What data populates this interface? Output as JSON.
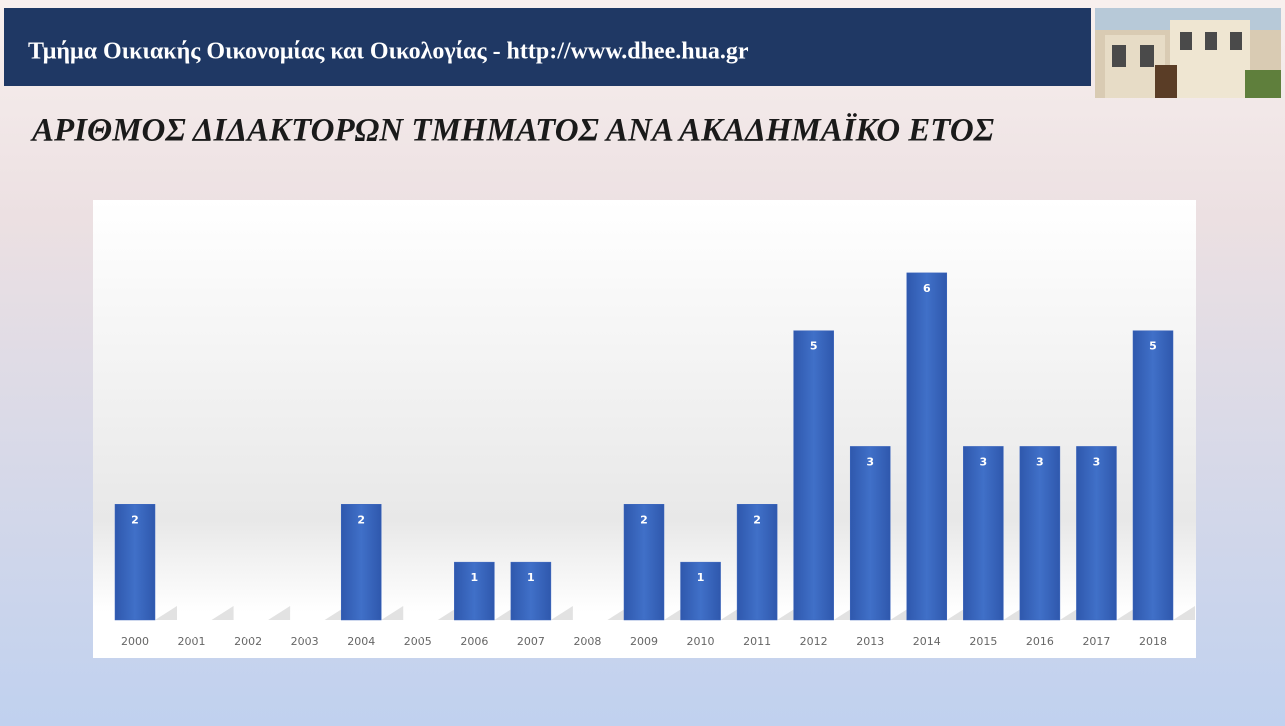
{
  "header": {
    "text": "Τμήμα Οικιακής Οικονομίας και Οικολογίας - http://www.dhee.hua.gr"
  },
  "chart_data": {
    "type": "bar",
    "title": "ΑΡΙΘΜΟΣ ΔΙΔΑΚΤΟΡΩΝ ΤΜΗΜΑΤΟΣ ΑΝΑ ΑΚΑΔΗΜΑΪΚΟ ΕΤΟΣ",
    "categories": [
      "2000",
      "2001",
      "2002",
      "2003",
      "2004",
      "2005",
      "2006",
      "2007",
      "2008",
      "2009",
      "2010",
      "2011",
      "2012",
      "2013",
      "2014",
      "2015",
      "2016",
      "2017",
      "2018"
    ],
    "values": [
      2,
      0,
      0,
      0,
      2,
      0,
      1,
      1,
      0,
      2,
      1,
      2,
      5,
      3,
      6,
      3,
      3,
      3,
      5
    ],
    "color": "#3a64bd",
    "ylim": [
      0,
      7
    ]
  }
}
